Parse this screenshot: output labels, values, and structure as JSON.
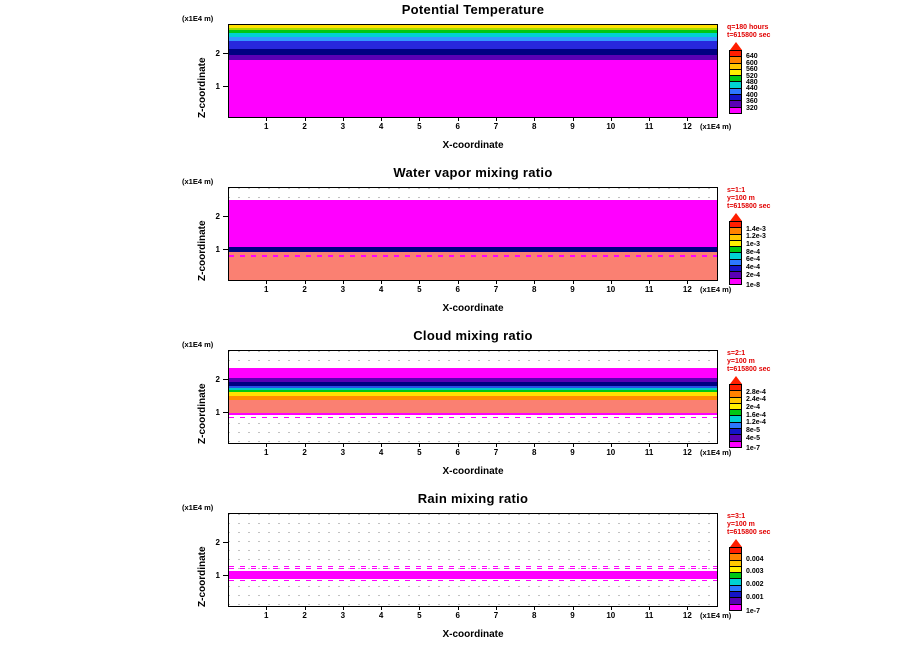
{
  "chart_data": [
    {
      "type": "heatmap",
      "title": "Potential Temperature",
      "xlabel": "X-coordinate",
      "ylabel": "Z-coordinate",
      "x_units": "(x1E4 m)",
      "z_units": "(x1E4 m)",
      "xlim": [
        0,
        12.8
      ],
      "zlim": [
        0,
        2.9
      ],
      "x_ticks": [
        "1",
        "2",
        "3",
        "4",
        "5",
        "6",
        "7",
        "8",
        "9",
        "10",
        "11",
        "12"
      ],
      "z_ticks": [
        "1",
        "2"
      ],
      "grid": "dotted",
      "legend_position": "right",
      "annotations": [
        "q=180 hours",
        "t=615800 sec"
      ],
      "colorbar": {
        "arrow_color": "#ff1e00",
        "colors": [
          "#ff1e00",
          "#ff8200",
          "#ffc800",
          "#fff000",
          "#00c814",
          "#00d2d2",
          "#2d78ff",
          "#1414c8",
          "#5a00b4",
          "#ff00ff"
        ],
        "labels": [
          {
            "text": "640",
            "at": 0.1
          },
          {
            "text": "600",
            "at": 0.2
          },
          {
            "text": "560",
            "at": 0.3
          },
          {
            "text": "520",
            "at": 0.4
          },
          {
            "text": "480",
            "at": 0.5
          },
          {
            "text": "440",
            "at": 0.6
          },
          {
            "text": "400",
            "at": 0.7
          },
          {
            "text": "360",
            "at": 0.8
          },
          {
            "text": "320",
            "at": 0.9
          }
        ]
      },
      "bands": [
        {
          "z_from": 2.81,
          "z_to": 2.9,
          "color": "#ffe000"
        },
        {
          "z_from": 2.73,
          "z_to": 2.81,
          "color": "#a0dc00"
        },
        {
          "z_from": 2.64,
          "z_to": 2.73,
          "color": "#00c814"
        },
        {
          "z_from": 2.52,
          "z_to": 2.64,
          "color": "#00d2d2"
        },
        {
          "z_from": 2.4,
          "z_to": 2.52,
          "color": "#3296ff"
        },
        {
          "z_from": 2.15,
          "z_to": 2.4,
          "color": "#2828dc"
        },
        {
          "z_from": 1.94,
          "z_to": 2.15,
          "color": "#000082"
        },
        {
          "z_from": 1.8,
          "z_to": 1.94,
          "color": "#5a00b4"
        },
        {
          "z_from": 0.0,
          "z_to": 1.8,
          "color": "#ff00ff"
        }
      ]
    },
    {
      "type": "heatmap",
      "title": "Water vapor mixing ratio",
      "xlabel": "X-coordinate",
      "ylabel": "Z-coordinate",
      "x_units": "(x1E4 m)",
      "z_units": "(x1E4 m)",
      "xlim": [
        0,
        12.8
      ],
      "zlim": [
        0,
        2.9
      ],
      "x_ticks": [
        "1",
        "2",
        "3",
        "4",
        "5",
        "6",
        "7",
        "8",
        "9",
        "10",
        "11",
        "12"
      ],
      "z_ticks": [
        "1",
        "2"
      ],
      "grid": "dotted",
      "legend_position": "right",
      "annotations": [
        "s=1:1",
        "y=100 m",
        "t=615800 sec"
      ],
      "colorbar": {
        "arrow_color": "#ff1e00",
        "colors": [
          "#ff1e00",
          "#ff8200",
          "#ffc800",
          "#fff000",
          "#00c814",
          "#00d2d2",
          "#2d78ff",
          "#1414c8",
          "#5a00b4",
          "#ff00ff"
        ],
        "labels": [
          {
            "text": "1.4e-3",
            "at": 0.12
          },
          {
            "text": "1.2e-3",
            "at": 0.24
          },
          {
            "text": "1e-3",
            "at": 0.36
          },
          {
            "text": "8e-4",
            "at": 0.48
          },
          {
            "text": "6e-4",
            "at": 0.6
          },
          {
            "text": "4e-4",
            "at": 0.72
          },
          {
            "text": "2e-4",
            "at": 0.84
          },
          {
            "text": "1e-8",
            "at": 1.0
          }
        ]
      },
      "bands": [
        {
          "z_from": 1.03,
          "z_to": 2.52,
          "color": "#ff00ff"
        },
        {
          "z_from": 0.87,
          "z_to": 1.03,
          "color": "#000082"
        },
        {
          "z_from": 0.0,
          "z_to": 0.87,
          "color": "#fa8072"
        },
        {
          "z_from": 0.74,
          "z_to": 0.78,
          "color": "#ff00ff",
          "dashed": true
        }
      ]
    },
    {
      "type": "heatmap",
      "title": "Cloud mixing ratio",
      "xlabel": "X-coordinate",
      "ylabel": "Z-coordinate",
      "x_units": "(x1E4 m)",
      "z_units": "(x1E4 m)",
      "xlim": [
        0,
        12.8
      ],
      "zlim": [
        0,
        2.9
      ],
      "x_ticks": [
        "1",
        "2",
        "3",
        "4",
        "5",
        "6",
        "7",
        "8",
        "9",
        "10",
        "11",
        "12"
      ],
      "z_ticks": [
        "1",
        "2"
      ],
      "grid": "dotted",
      "legend_position": "right",
      "annotations": [
        "s=2:1",
        "y=100 m",
        "t=615800 sec"
      ],
      "colorbar": {
        "arrow_color": "#ff1e00",
        "colors": [
          "#ff1e00",
          "#ff8200",
          "#ffc800",
          "#fff000",
          "#00c814",
          "#00d2d2",
          "#2d78ff",
          "#1414c8",
          "#5a00b4",
          "#ff00ff"
        ],
        "labels": [
          {
            "text": "2.8e-4",
            "at": 0.12
          },
          {
            "text": "2.4e-4",
            "at": 0.24
          },
          {
            "text": "2e-4",
            "at": 0.36
          },
          {
            "text": "1.6e-4",
            "at": 0.48
          },
          {
            "text": "1.2e-4",
            "at": 0.6
          },
          {
            "text": "8e-5",
            "at": 0.72
          },
          {
            "text": "4e-5",
            "at": 0.84
          },
          {
            "text": "1e-7",
            "at": 1.0
          }
        ]
      },
      "bands": [
        {
          "z_from": 2.05,
          "z_to": 2.35,
          "color": "#ff00ff"
        },
        {
          "z_from": 1.92,
          "z_to": 2.05,
          "color": "#5a00b4"
        },
        {
          "z_from": 1.8,
          "z_to": 1.92,
          "color": "#000082"
        },
        {
          "z_from": 1.72,
          "z_to": 1.8,
          "color": "#2850e6"
        },
        {
          "z_from": 1.66,
          "z_to": 1.72,
          "color": "#00c8c8"
        },
        {
          "z_from": 1.6,
          "z_to": 1.66,
          "color": "#00c814"
        },
        {
          "z_from": 1.47,
          "z_to": 1.6,
          "color": "#ffe000"
        },
        {
          "z_from": 1.34,
          "z_to": 1.47,
          "color": "#ff8c00"
        },
        {
          "z_from": 0.95,
          "z_to": 1.34,
          "color": "#fa8072"
        },
        {
          "z_from": 0.88,
          "z_to": 0.95,
          "color": "#ff00ff"
        },
        {
          "z_from": 0.79,
          "z_to": 0.83,
          "color": "#ff00ff",
          "dashed": true
        }
      ]
    },
    {
      "type": "heatmap",
      "title": "Rain mixing ratio",
      "xlabel": "X-coordinate",
      "ylabel": "Z-coordinate",
      "x_units": "(x1E4 m)",
      "z_units": "(x1E4 m)",
      "xlim": [
        0,
        12.8
      ],
      "zlim": [
        0,
        2.9
      ],
      "x_ticks": [
        "1",
        "2",
        "3",
        "4",
        "5",
        "6",
        "7",
        "8",
        "9",
        "10",
        "11",
        "12"
      ],
      "z_ticks": [
        "1",
        "2"
      ],
      "grid": "dotted",
      "legend_position": "right",
      "annotations": [
        "s=3:1",
        "y=100 m",
        "t=615800 sec"
      ],
      "colorbar": {
        "arrow_color": "#ff1e00",
        "colors": [
          "#ff1e00",
          "#ff8200",
          "#ffc800",
          "#fff000",
          "#00c814",
          "#00d2d2",
          "#2d78ff",
          "#1414c8",
          "#5a00b4",
          "#ff00ff"
        ],
        "labels": [
          {
            "text": "0.004",
            "at": 0.18
          },
          {
            "text": "0.003",
            "at": 0.38
          },
          {
            "text": "0.002",
            "at": 0.58
          },
          {
            "text": "0.001",
            "at": 0.78
          },
          {
            "text": "1e-7",
            "at": 1.0
          }
        ]
      },
      "bands": [
        {
          "z_from": 0.86,
          "z_to": 1.1,
          "color": "#ff00ff"
        },
        {
          "z_from": 1.16,
          "z_to": 1.19,
          "color": "#ff00ff",
          "dashed": true
        },
        {
          "z_from": 1.24,
          "z_to": 1.26,
          "color": "#ff00ff",
          "dashed": true
        },
        {
          "z_from": 0.78,
          "z_to": 0.81,
          "color": "#ff00ff",
          "dashed": true
        }
      ]
    }
  ]
}
